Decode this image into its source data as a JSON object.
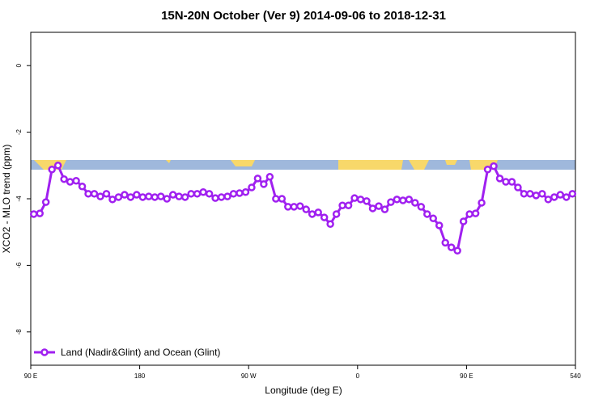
{
  "chart_data": {
    "type": "line",
    "title": "15N-20N October (Ver 9)   2014-09-06 to 2018-12-31",
    "x_label": "Longitude (deg E)",
    "y_label": "XCO2 - MLO trend (ppm)",
    "xlim": [
      90,
      540
    ],
    "xticks": [
      {
        "value": 90,
        "label": "90 E"
      },
      180,
      {
        "value": 270,
        "label": "90 W"
      },
      {
        "value": 360,
        "label": "0"
      },
      {
        "value": 450,
        "label": "90 E"
      },
      540
    ],
    "ylim": [
      -9,
      1
    ],
    "yticks": [
      0,
      -2,
      -4,
      -6,
      -8
    ],
    "grid": false,
    "legend": "bottom-left",
    "x": [
      92.5,
      97.5,
      102.5,
      107.5,
      112.5,
      117.5,
      122.5,
      127.5,
      132.5,
      137.5,
      142.5,
      147.5,
      152.5,
      157.5,
      162.5,
      167.5,
      172.5,
      177.5,
      182.5,
      187.5,
      192.5,
      197.5,
      202.5,
      207.5,
      212.5,
      217.5,
      222.5,
      227.5,
      232.5,
      237.5,
      242.5,
      247.5,
      252.5,
      257.5,
      262.5,
      267.5,
      272.5,
      277.5,
      282.5,
      287.5,
      292.5,
      297.5,
      302.5,
      307.5,
      312.5,
      317.5,
      322.5,
      327.5,
      332.5,
      337.5,
      342.5,
      347.5,
      352.5,
      357.5,
      362.5,
      367.5,
      372.5,
      377.5,
      382.5,
      387.5,
      392.5,
      397.5,
      402.5,
      407.5,
      412.5,
      417.5,
      422.5,
      427.5,
      432.5,
      437.5,
      442.5,
      447.5,
      452.5,
      457.5,
      462.5,
      467.5,
      472.5,
      477.5,
      482.5,
      487.5,
      492.5,
      497.5,
      502.5,
      507.5,
      512.5,
      517.5,
      522.5,
      527.5,
      532.5,
      537.5
    ],
    "series": [
      {
        "name": "Land (Nadir&Glint) and Ocean (Glint)",
        "color": "#a020f0",
        "values": [
          -4.46,
          -4.44,
          -4.1,
          -3.12,
          -3.0,
          -3.41,
          -3.49,
          -3.46,
          -3.63,
          -3.85,
          -3.85,
          -3.93,
          -3.85,
          -4.02,
          -3.95,
          -3.88,
          -3.95,
          -3.88,
          -3.95,
          -3.93,
          -3.95,
          -3.93,
          -4.0,
          -3.88,
          -3.93,
          -3.95,
          -3.85,
          -3.85,
          -3.8,
          -3.85,
          -3.98,
          -3.95,
          -3.93,
          -3.85,
          -3.83,
          -3.8,
          -3.66,
          -3.39,
          -3.56,
          -3.34,
          -4.0,
          -4.0,
          -4.24,
          -4.24,
          -4.22,
          -4.32,
          -4.46,
          -4.41,
          -4.56,
          -4.76,
          -4.46,
          -4.2,
          -4.2,
          -3.98,
          -4.02,
          -4.07,
          -4.29,
          -4.22,
          -4.32,
          -4.1,
          -4.02,
          -4.05,
          -4.02,
          -4.12,
          -4.24,
          -4.46,
          -4.59,
          -4.8,
          -5.32,
          -5.46,
          -5.56,
          -4.68,
          -4.46,
          -4.44,
          -4.12,
          -3.12,
          -3.02,
          -3.39,
          -3.49,
          -3.49,
          -3.66,
          -3.85,
          -3.85,
          -3.9,
          -3.85,
          -4.02,
          -3.95,
          -3.88,
          -3.95,
          -3.85
        ]
      }
    ]
  }
}
